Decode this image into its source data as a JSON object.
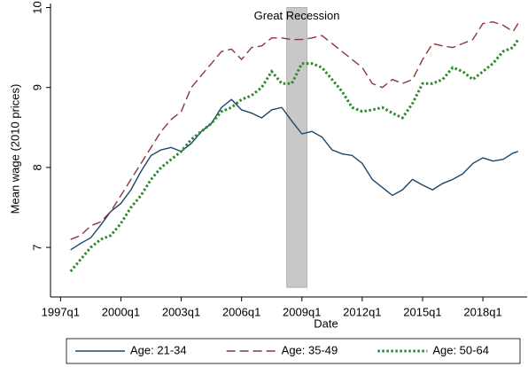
{
  "chart_data": {
    "type": "line",
    "x_label": "Date",
    "y_label": "Mean wage (2010 prices)",
    "x": [
      1997.5,
      1998,
      1998.5,
      1999,
      1999.5,
      2000,
      2000.5,
      2001,
      2001.5,
      2002,
      2002.5,
      2003,
      2003.5,
      2004,
      2004.5,
      2005,
      2005.5,
      2006,
      2006.5,
      2007,
      2007.5,
      2008,
      2008.5,
      2009,
      2009.5,
      2010,
      2010.5,
      2011,
      2011.5,
      2012,
      2012.5,
      2013,
      2013.5,
      2014,
      2014.5,
      2015,
      2015.5,
      2016,
      2016.5,
      2017,
      2017.5,
      2018,
      2018.5,
      2019,
      2019.5,
      2019.75
    ],
    "series": [
      {
        "name": "Age: 21-34",
        "color": "#1a476f",
        "style": "solid",
        "values": [
          6.97,
          7.05,
          7.12,
          7.28,
          7.45,
          7.55,
          7.72,
          7.95,
          8.15,
          8.22,
          8.25,
          8.2,
          8.3,
          8.45,
          8.55,
          8.75,
          8.85,
          8.72,
          8.68,
          8.62,
          8.72,
          8.75,
          8.58,
          8.42,
          8.45,
          8.38,
          8.22,
          8.17,
          8.15,
          8.05,
          7.85,
          7.75,
          7.65,
          7.72,
          7.85,
          7.78,
          7.72,
          7.8,
          7.85,
          7.92,
          8.05,
          8.12,
          8.08,
          8.1,
          8.18,
          8.2
        ]
      },
      {
        "name": "Age: 35-49",
        "color": "#90353b",
        "style": "dashed",
        "values": [
          7.1,
          7.15,
          7.27,
          7.32,
          7.45,
          7.65,
          7.85,
          8.05,
          8.25,
          8.45,
          8.6,
          8.7,
          9.0,
          9.15,
          9.3,
          9.45,
          9.48,
          9.35,
          9.5,
          9.52,
          9.62,
          9.62,
          9.6,
          9.6,
          9.62,
          9.65,
          9.55,
          9.45,
          9.35,
          9.25,
          9.05,
          9.0,
          9.1,
          9.05,
          9.1,
          9.35,
          9.55,
          9.52,
          9.5,
          9.55,
          9.6,
          9.8,
          9.82,
          9.78,
          9.7,
          9.8
        ]
      },
      {
        "name": "Age: 50-64",
        "color": "#2d8a2d",
        "style": "dotted",
        "values": [
          6.7,
          6.85,
          7.0,
          7.1,
          7.15,
          7.3,
          7.5,
          7.65,
          7.85,
          8.0,
          8.1,
          8.2,
          8.35,
          8.45,
          8.55,
          8.7,
          8.75,
          8.85,
          8.9,
          9.0,
          9.2,
          9.05,
          9.05,
          9.3,
          9.3,
          9.25,
          9.1,
          8.95,
          8.75,
          8.7,
          8.72,
          8.75,
          8.68,
          8.62,
          8.8,
          9.05,
          9.05,
          9.1,
          9.25,
          9.2,
          9.1,
          9.2,
          9.3,
          9.45,
          9.5,
          9.6
        ]
      }
    ],
    "shaded_region": {
      "label": "Great Recession",
      "color": "#c8c8c8",
      "x": [
        2008.25,
        2009.25
      ],
      "y": [
        6.5,
        10
      ]
    },
    "xlim": [
      1996.5,
      2020.2
    ],
    "xticks": [
      {
        "value": 1997,
        "label": "1997q1"
      },
      {
        "value": 2000,
        "label": "2000q1"
      },
      {
        "value": 2003,
        "label": "2003q1"
      },
      {
        "value": 2006,
        "label": "2006q1"
      },
      {
        "value": 2009,
        "label": "2009q1"
      },
      {
        "value": 2012,
        "label": "2012q1"
      },
      {
        "value": 2015,
        "label": "2015q1"
      },
      {
        "value": 2018,
        "label": "2018q1"
      }
    ],
    "ylim": [
      6.38,
      10.05
    ],
    "yticks": [
      7,
      8,
      9,
      10
    ],
    "legend": "bottom"
  }
}
